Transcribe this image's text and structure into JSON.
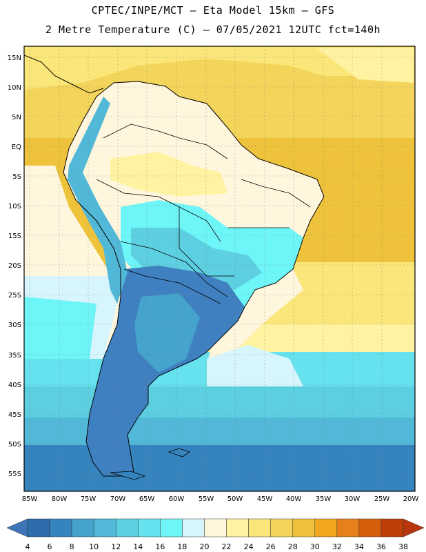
{
  "header": {
    "line1": "CPTEC/INPE/MCT –  Eta Model 15km – GFS",
    "line2": "2 Metre Temperature (C) – 07/05/2021 12UTC fct=140h"
  },
  "map": {
    "lat_labels": [
      "15N",
      "10N",
      "5N",
      "EQ",
      "5S",
      "10S",
      "15S",
      "20S",
      "25S",
      "30S",
      "35S",
      "40S",
      "45S",
      "50S",
      "55S"
    ],
    "lon_labels": [
      "85W",
      "80W",
      "75W",
      "70W",
      "65W",
      "60W",
      "55W",
      "50W",
      "45W",
      "40W",
      "35W",
      "30W",
      "25W",
      "20W"
    ]
  },
  "colorbar": {
    "labels": [
      "4",
      "6",
      "8",
      "10",
      "12",
      "14",
      "16",
      "18",
      "20",
      "22",
      "24",
      "26",
      "28",
      "30",
      "32",
      "34",
      "36",
      "38"
    ],
    "colors": [
      "#2d6dab",
      "#3584bd",
      "#45a3cc",
      "#52b8d8",
      "#5ccfe0",
      "#66e2ef",
      "#6ef5f8",
      "#d6f5fc",
      "#fff6de",
      "#fff3a2",
      "#fbe679",
      "#f4d55b",
      "#eec33b",
      "#f0a71f",
      "#e58118",
      "#d65f0d",
      "#bf3e07"
    ],
    "left_arrow_color": "#3d74b8",
    "right_arrow_color": "#b8360d"
  },
  "palette": {
    "ocean_north": "#fbe679",
    "ocean_north_hot": "#f4d55b",
    "pacific": "#d6f5fc",
    "cool_mid": "#5ccfe0",
    "cold_south": "#3584bd",
    "land_cold": "#3f80c0",
    "andes": "#52b8d8",
    "amazon": "#fff6de"
  }
}
